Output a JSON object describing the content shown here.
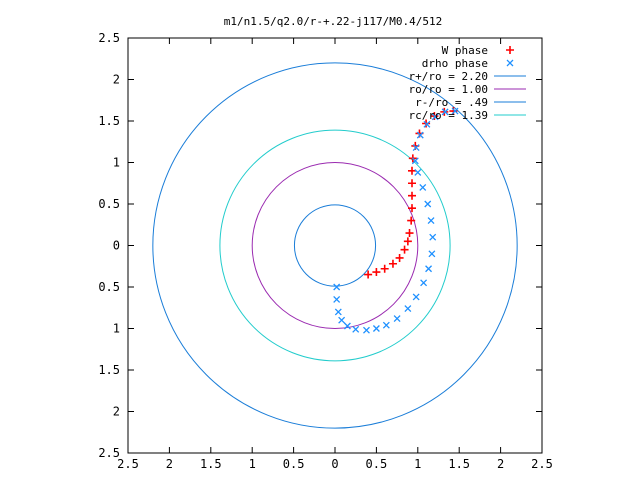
{
  "chart_data": {
    "type": "scatter",
    "title": "m1/n1.5/q2.0/r-+.22-j117/M0.4/512",
    "xlabel": "",
    "ylabel": "",
    "xlim": [
      -2.5,
      2.5
    ],
    "ylim": [
      -2.5,
      2.5
    ],
    "x_ticks": [
      -2.5,
      -2,
      -1.5,
      -1,
      -0.5,
      0,
      0.5,
      1,
      1.5,
      2,
      2.5
    ],
    "x_tick_labels": [
      "2.5",
      "2",
      "1.5",
      "1",
      "0.5",
      "0",
      "0.5",
      "1",
      "1.5",
      "2",
      "2.5"
    ],
    "y_ticks": [
      2.5,
      2,
      1.5,
      1,
      0.5,
      0,
      -0.5,
      -1,
      -1.5,
      -2,
      -2.5
    ],
    "y_tick_labels": [
      "2.5",
      "2",
      "1.5",
      "1",
      "0.5",
      "0",
      "0.5",
      "1",
      "1.5",
      "2",
      "2.5"
    ],
    "grid": false,
    "legend_position": "top-right",
    "series": [
      {
        "name": "W phase",
        "kind": "points",
        "marker": "plus",
        "color": "#ff0000",
        "points": [
          [
            0.4,
            -0.35
          ],
          [
            0.5,
            -0.32
          ],
          [
            0.6,
            -0.28
          ],
          [
            0.7,
            -0.22
          ],
          [
            0.78,
            -0.15
          ],
          [
            0.84,
            -0.05
          ],
          [
            0.88,
            0.05
          ],
          [
            0.9,
            0.15
          ],
          [
            0.92,
            0.3
          ],
          [
            0.93,
            0.45
          ],
          [
            0.93,
            0.6
          ],
          [
            0.93,
            0.75
          ],
          [
            0.93,
            0.9
          ],
          [
            0.94,
            1.05
          ],
          [
            0.97,
            1.2
          ],
          [
            1.02,
            1.35
          ],
          [
            1.1,
            1.47
          ],
          [
            1.2,
            1.56
          ],
          [
            1.32,
            1.61
          ],
          [
            1.43,
            1.62
          ]
        ]
      },
      {
        "name": "drho phase",
        "kind": "points",
        "marker": "cross",
        "color": "#1e90ff",
        "points": [
          [
            0.02,
            -0.5
          ],
          [
            0.02,
            -0.65
          ],
          [
            0.04,
            -0.8
          ],
          [
            0.08,
            -0.9
          ],
          [
            0.15,
            -0.97
          ],
          [
            0.25,
            -1.01
          ],
          [
            0.38,
            -1.02
          ],
          [
            0.5,
            -1.0
          ],
          [
            0.62,
            -0.96
          ],
          [
            0.75,
            -0.88
          ],
          [
            0.88,
            -0.76
          ],
          [
            0.98,
            -0.62
          ],
          [
            1.07,
            -0.45
          ],
          [
            1.13,
            -0.28
          ],
          [
            1.17,
            -0.1
          ],
          [
            1.18,
            0.1
          ],
          [
            1.16,
            0.3
          ],
          [
            1.12,
            0.5
          ],
          [
            1.06,
            0.7
          ],
          [
            1.0,
            0.88
          ],
          [
            0.97,
            1.02
          ],
          [
            0.98,
            1.18
          ],
          [
            1.03,
            1.33
          ],
          [
            1.11,
            1.46
          ],
          [
            1.21,
            1.55
          ],
          [
            1.33,
            1.61
          ],
          [
            1.45,
            1.62
          ]
        ]
      },
      {
        "name": "r+/ro = 2.20",
        "kind": "circle",
        "radius": 2.2,
        "color": "#1a7dd8"
      },
      {
        "name": "ro/ro = 1.00",
        "kind": "circle",
        "radius": 1.0,
        "color": "#9a2ab0"
      },
      {
        "name": "r-/ro = .49",
        "kind": "circle",
        "radius": 0.49,
        "color": "#1a7dd8"
      },
      {
        "name": "rc/ro = 1.39",
        "kind": "circle",
        "radius": 1.39,
        "color": "#22cccc"
      }
    ]
  }
}
